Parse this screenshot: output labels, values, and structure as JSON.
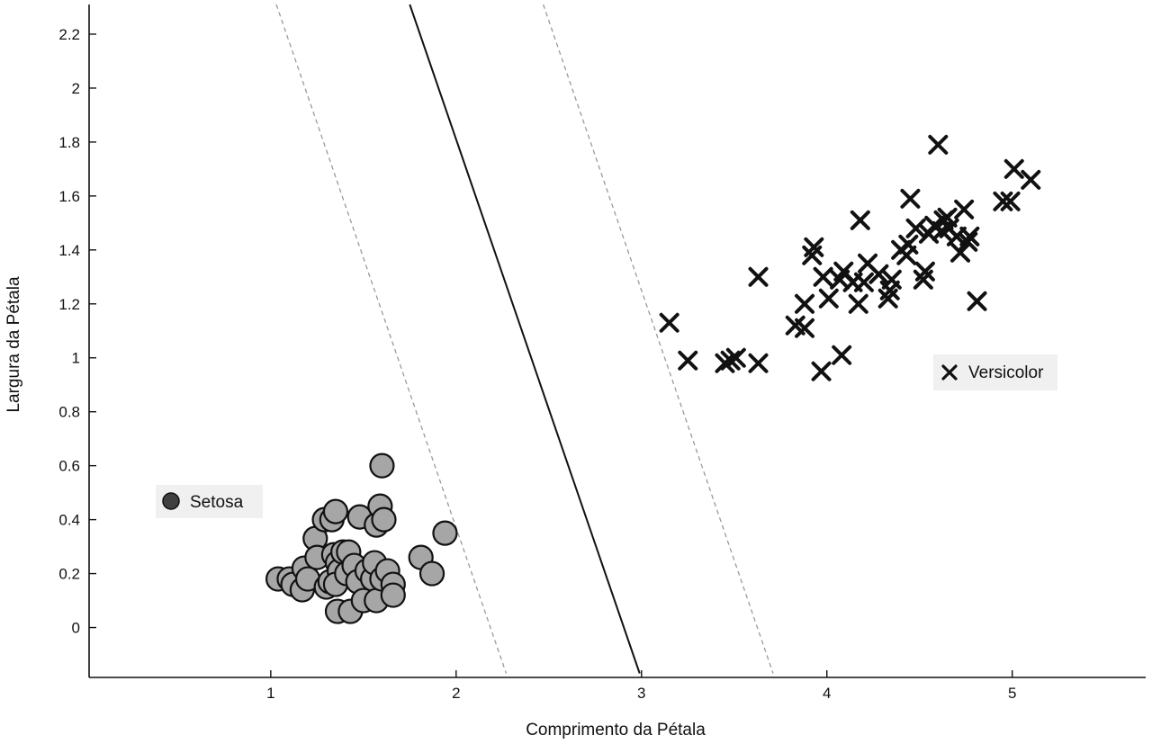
{
  "chart_data": {
    "type": "scatter",
    "title": "",
    "xlabel": "Comprimento da Pétala",
    "ylabel": "Largura da Pétala",
    "xlim": [
      0.02,
      5.72
    ],
    "ylim": [
      -0.185,
      2.31
    ],
    "x_ticks": [
      "1",
      "2",
      "3",
      "4",
      "5"
    ],
    "y_ticks": [
      "0",
      "0.2",
      "0.4",
      "0.6",
      "0.8",
      "1",
      "1.2",
      "1.4",
      "1.6",
      "1.8",
      "2",
      "2.2"
    ],
    "grid": false,
    "colors": {
      "setosa": "#a6a6a6",
      "setosa_legend": "#404040",
      "versicolor": "#111111",
      "boundary": "#111111",
      "margin": "#9a9a9a"
    },
    "decision_boundary": {
      "points": [
        [
          1.75,
          2.31
        ],
        [
          2.99,
          -0.17
        ]
      ]
    },
    "margins": [
      {
        "points": [
          [
            1.03,
            2.31
          ],
          [
            2.27,
            -0.17
          ]
        ]
      },
      {
        "points": [
          [
            2.47,
            2.31
          ],
          [
            3.71,
            -0.17
          ]
        ]
      }
    ],
    "series": [
      {
        "name": "Setosa",
        "marker": "circle",
        "points": [
          [
            1.04,
            0.18
          ],
          [
            1.1,
            0.18
          ],
          [
            1.12,
            0.16
          ],
          [
            1.18,
            0.22
          ],
          [
            1.17,
            0.14
          ],
          [
            1.2,
            0.18
          ],
          [
            1.24,
            0.33
          ],
          [
            1.25,
            0.26
          ],
          [
            1.29,
            0.4
          ],
          [
            1.3,
            0.15
          ],
          [
            1.32,
            0.17
          ],
          [
            1.33,
            0.4
          ],
          [
            1.35,
            0.43
          ],
          [
            1.34,
            0.27
          ],
          [
            1.36,
            0.24
          ],
          [
            1.37,
            0.21
          ],
          [
            1.35,
            0.16
          ],
          [
            1.36,
            0.06
          ],
          [
            1.39,
            0.28
          ],
          [
            1.42,
            0.28
          ],
          [
            1.41,
            0.2
          ],
          [
            1.43,
            0.06
          ],
          [
            1.45,
            0.23
          ],
          [
            1.47,
            0.17
          ],
          [
            1.48,
            0.41
          ],
          [
            1.5,
            0.1
          ],
          [
            1.52,
            0.21
          ],
          [
            1.55,
            0.18
          ],
          [
            1.57,
            0.1
          ],
          [
            1.56,
            0.24
          ],
          [
            1.57,
            0.38
          ],
          [
            1.59,
            0.45
          ],
          [
            1.61,
            0.4
          ],
          [
            1.6,
            0.6
          ],
          [
            1.6,
            0.18
          ],
          [
            1.63,
            0.21
          ],
          [
            1.66,
            0.16
          ],
          [
            1.66,
            0.12
          ],
          [
            1.81,
            0.26
          ],
          [
            1.87,
            0.2
          ],
          [
            1.94,
            0.35
          ]
        ]
      },
      {
        "name": "Versicolor",
        "marker": "x",
        "points": [
          [
            3.15,
            1.13
          ],
          [
            3.25,
            0.99
          ],
          [
            3.45,
            0.98
          ],
          [
            3.48,
            0.99
          ],
          [
            3.51,
            1.0
          ],
          [
            3.63,
            1.3
          ],
          [
            3.63,
            0.98
          ],
          [
            3.83,
            1.12
          ],
          [
            3.88,
            1.11
          ],
          [
            3.88,
            1.2
          ],
          [
            3.92,
            1.38
          ],
          [
            3.93,
            1.41
          ],
          [
            3.97,
            0.95
          ],
          [
            3.98,
            1.3
          ],
          [
            4.01,
            1.22
          ],
          [
            4.07,
            1.29
          ],
          [
            4.08,
            1.01
          ],
          [
            4.09,
            1.32
          ],
          [
            4.14,
            1.28
          ],
          [
            4.17,
            1.2
          ],
          [
            4.18,
            1.51
          ],
          [
            4.2,
            1.28
          ],
          [
            4.22,
            1.35
          ],
          [
            4.28,
            1.31
          ],
          [
            4.33,
            1.22
          ],
          [
            4.34,
            1.25
          ],
          [
            4.35,
            1.29
          ],
          [
            4.4,
            1.4
          ],
          [
            4.43,
            1.38
          ],
          [
            4.44,
            1.42
          ],
          [
            4.45,
            1.59
          ],
          [
            4.48,
            1.48
          ],
          [
            4.52,
            1.29
          ],
          [
            4.53,
            1.32
          ],
          [
            4.55,
            1.46
          ],
          [
            4.58,
            1.49
          ],
          [
            4.6,
            1.79
          ],
          [
            4.62,
            1.47
          ],
          [
            4.63,
            1.51
          ],
          [
            4.65,
            1.52
          ],
          [
            4.66,
            1.48
          ],
          [
            4.7,
            1.45
          ],
          [
            4.72,
            1.39
          ],
          [
            4.74,
            1.55
          ],
          [
            4.76,
            1.43
          ],
          [
            4.77,
            1.45
          ],
          [
            4.81,
            1.21
          ],
          [
            4.95,
            1.58
          ],
          [
            4.99,
            1.58
          ],
          [
            5.01,
            1.7
          ],
          [
            5.1,
            1.66
          ]
        ]
      }
    ],
    "legend": [
      {
        "label": "Setosa",
        "position": "middle-left"
      },
      {
        "label": "Versicolor",
        "position": "middle-right"
      }
    ]
  }
}
